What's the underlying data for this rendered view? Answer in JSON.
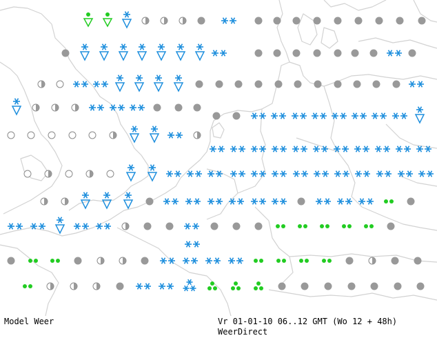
{
  "footer": {
    "model": "Model Weer",
    "valid": "Vr 01-01-10 06..12 GMT (Wo 12 + 48h)",
    "brand": "WeerDirect"
  },
  "colors": {
    "coast": "#d2d2d2",
    "rain": "#999999",
    "snow": "#1f8fdd",
    "drizzle": "#22cc22",
    "cloud_outline": "#8a8a8a"
  },
  "symbols": {
    "rain_drop": "grey-dot",
    "mixed": "half-filled-circle",
    "overcast": "open-circle",
    "snow_shower": "snow-shower-triangle",
    "snow": "double-asterisk",
    "drizzle": "green-dots"
  }
}
